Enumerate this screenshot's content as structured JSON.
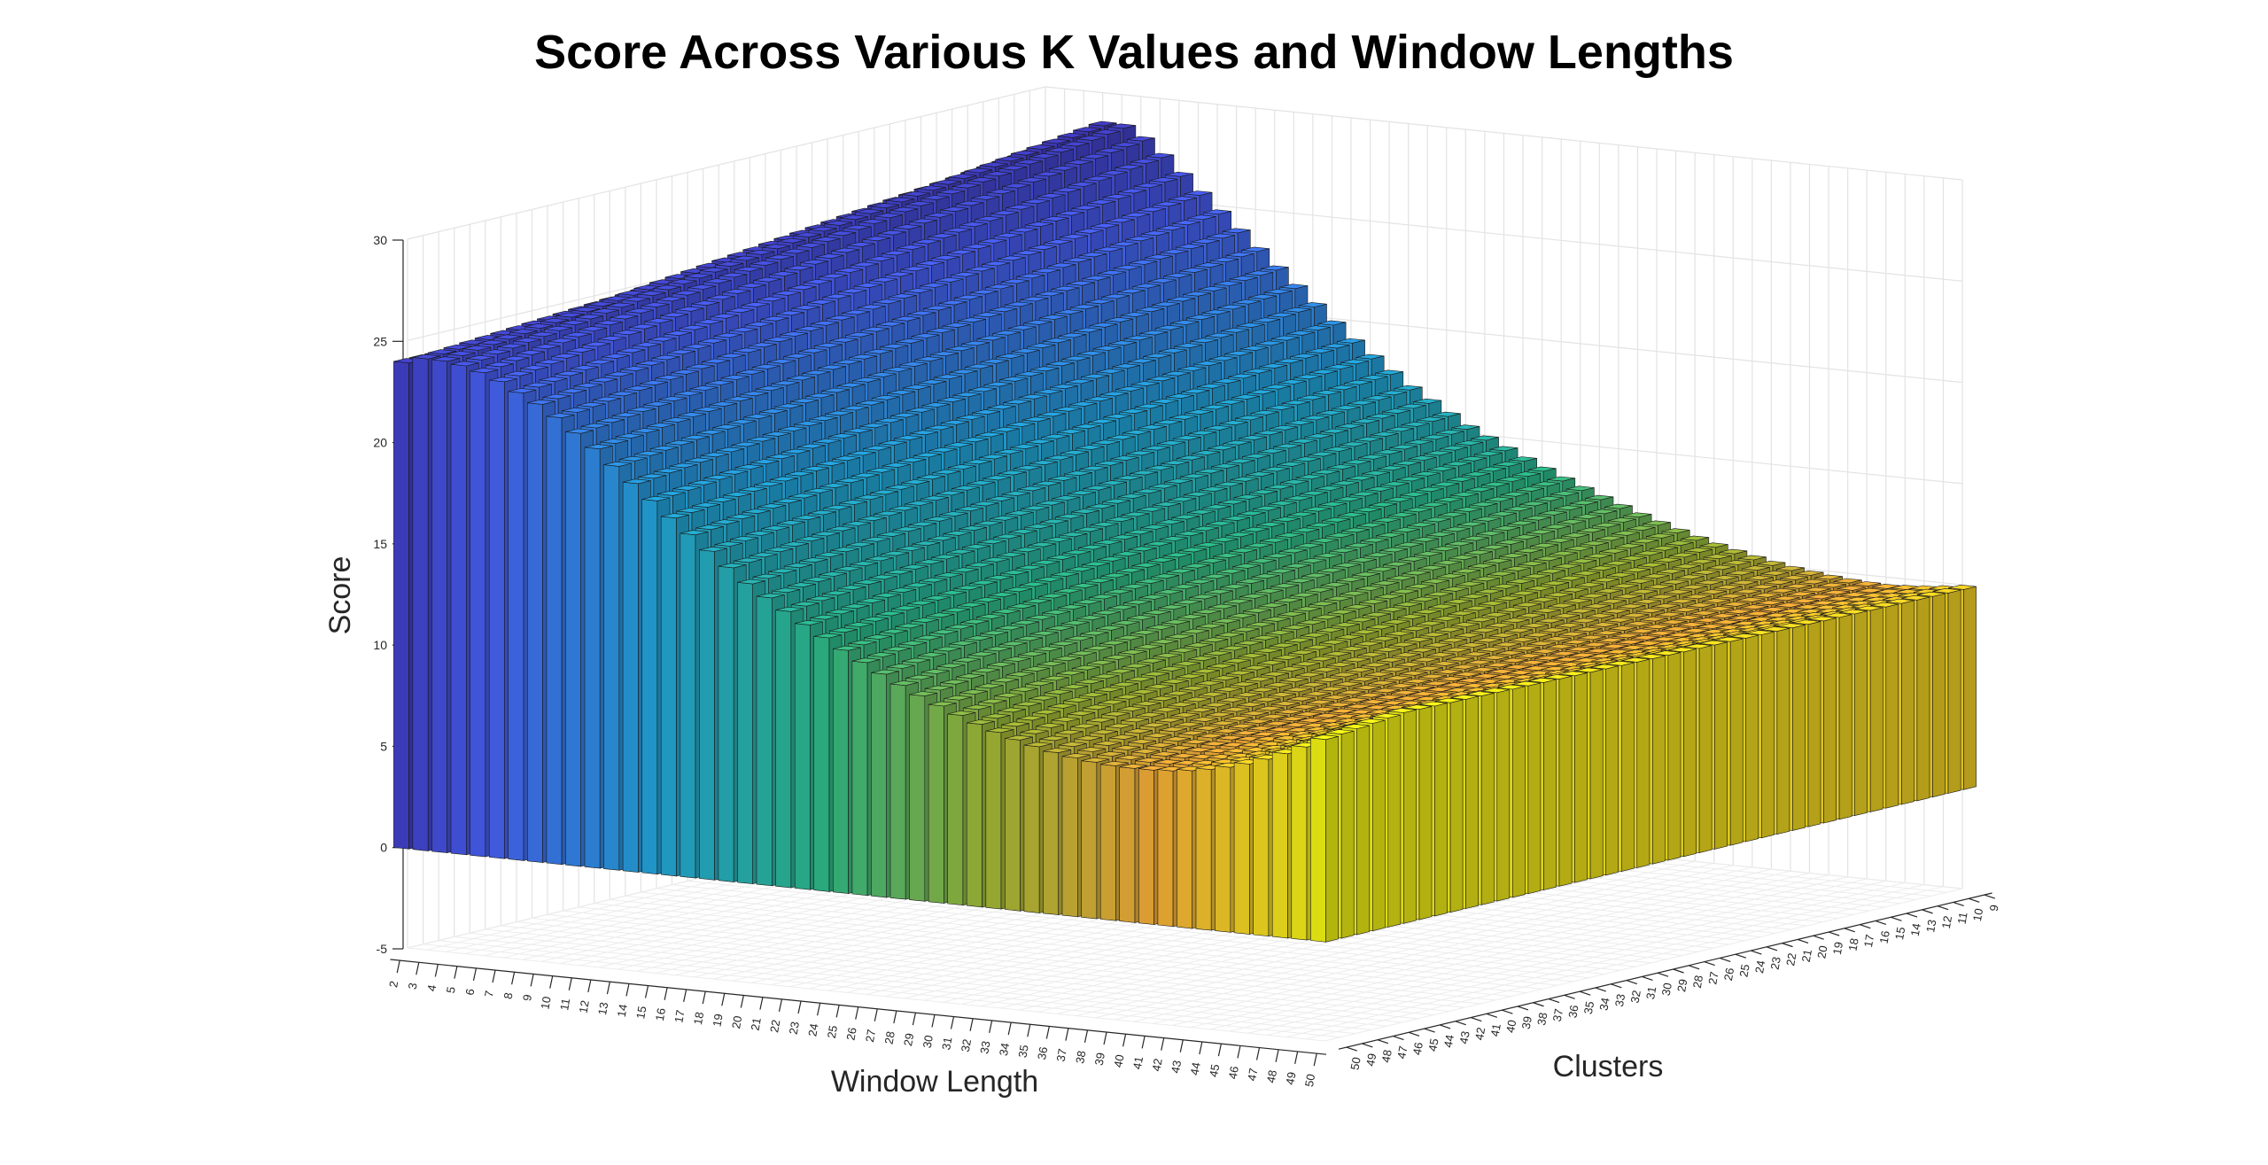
{
  "chart_data": {
    "type": "bar3d",
    "title": "Score Across Various K Values and Window Lengths",
    "xlabel": "Window Length",
    "ylabel": "Clusters",
    "zlabel": "Score",
    "window_lengths": [
      2,
      3,
      4,
      5,
      6,
      7,
      8,
      9,
      10,
      11,
      12,
      13,
      14,
      15,
      16,
      17,
      18,
      19,
      20,
      21,
      22,
      23,
      24,
      25,
      26,
      27,
      28,
      29,
      30,
      31,
      32,
      33,
      34,
      35,
      36,
      37,
      38,
      39,
      40,
      41,
      42,
      43,
      44,
      45,
      46,
      47,
      48,
      49,
      50
    ],
    "clusters": [
      9,
      10,
      11,
      12,
      13,
      14,
      15,
      16,
      17,
      18,
      19,
      20,
      21,
      22,
      23,
      24,
      25,
      26,
      27,
      28,
      29,
      30,
      31,
      32,
      33,
      34,
      35,
      36,
      37,
      38,
      39,
      40,
      41,
      42,
      43,
      44,
      45,
      46,
      47,
      48,
      49,
      50
    ],
    "zlim": [
      -5,
      30
    ],
    "zticks": [
      -5,
      0,
      5,
      10,
      15,
      20,
      25,
      30
    ],
    "grid": true,
    "colormap": [
      "#3e26a8",
      "#4a63fc",
      "#23aae1",
      "#2dc08e",
      "#a6be36",
      "#fbb13a",
      "#f9fb15"
    ],
    "front_row_clusters": 9,
    "front_row_scores": [
      24,
      24.3,
      24.3,
      24.2,
      24,
      23.7,
      23.3,
      22.9,
      22.4,
      21.8,
      21.2,
      20.5,
      19.8,
      19.1,
      18.4,
      17.7,
      17.0,
      16.3,
      15.6,
      15.0,
      14.4,
      13.8,
      13.2,
      12.6,
      12.0,
      11.4,
      10.8,
      10.2,
      9.6,
      9.0,
      8.4,
      7.8,
      7.2,
      6.6,
      6.0,
      5.4,
      4.8,
      4.2,
      3.6,
      3.0,
      2.4,
      1.8,
      1.2,
      0.6,
      0,
      -0.5,
      -1.0,
      -1.5,
      -1.8
    ],
    "back_edge_scores": [
      24,
      26.5,
      27.9,
      28.5,
      28.5,
      28.0,
      27.3,
      26.5,
      25.7,
      24.9,
      24.1,
      23.3,
      22.5,
      21.7,
      20.9,
      20.1,
      19.3,
      18.6,
      17.9,
      17.2,
      16.6,
      16.0,
      15.4,
      14.9,
      14.4,
      13.9,
      13.4,
      12.9,
      12.4,
      11.9,
      11.4,
      10.9,
      10.4,
      9.9,
      9.4,
      8.9,
      8.4,
      7.9,
      7.4,
      6.9,
      6.4,
      5.9,
      5.4,
      4.9,
      4.4,
      4.0,
      3.6,
      3.2,
      2.8
    ],
    "right_edge_scores": [
      10.0,
      10.2,
      10.4,
      10.6,
      10.8,
      11.0,
      11.1,
      11.2,
      11.3,
      11.4,
      11.5,
      11.6,
      11.7,
      11.8,
      11.9,
      12.0,
      12.1,
      12.2,
      12.3,
      12.4,
      12.5,
      12.6,
      12.7,
      12.8,
      12.9,
      13.0,
      13.1,
      13.2,
      13.3,
      13.4,
      13.5,
      13.6,
      13.7,
      13.8,
      13.9,
      14.0,
      14.1,
      14.2,
      14.3,
      14.4,
      14.5,
      14.6
    ]
  }
}
